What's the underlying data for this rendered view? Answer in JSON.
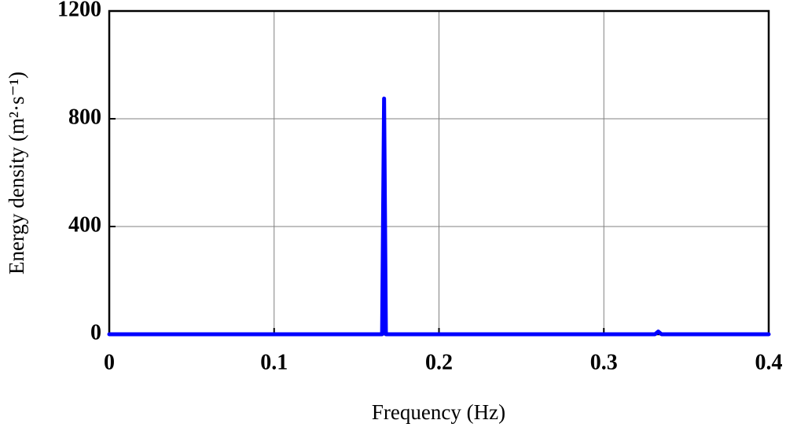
{
  "chart_data": {
    "type": "line",
    "x_label": "Frequency (Hz)",
    "y_label": "Energy density (m²·s⁻¹)",
    "x": [
      0,
      0.1655,
      0.1667,
      0.1678,
      0.331,
      0.333,
      0.335,
      0.4
    ],
    "values": [
      0,
      0,
      875,
      0,
      0,
      10,
      0,
      0
    ],
    "color": "#0000ff",
    "xlim": [
      0,
      0.4
    ],
    "xticks": [
      0,
      0.1,
      0.2,
      0.3,
      0.4
    ],
    "ylim": [
      0,
      1200
    ],
    "yticks": [
      0,
      400,
      800,
      1200
    ],
    "grid": true
  }
}
